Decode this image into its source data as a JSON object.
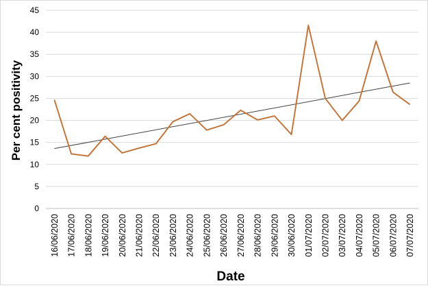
{
  "chart_data": {
    "type": "line",
    "title": "",
    "xlabel": "Date",
    "ylabel": "Per cent positivity",
    "ylim": [
      0,
      45
    ],
    "yticks": [
      0,
      5,
      10,
      15,
      20,
      25,
      30,
      35,
      40,
      45
    ],
    "grid": "horizontal",
    "legend": "none",
    "categories": [
      "16/06/2020",
      "17/06/2020",
      "18/06/2020",
      "19/06/2020",
      "20/06/2020",
      "21/06/2020",
      "22/06/2020",
      "23/06/2020",
      "24/06/2020",
      "25/06/2020",
      "26/06/2020",
      "27/06/2020",
      "28/06/2020",
      "29/06/2020",
      "30/06/2020",
      "01/07/2020",
      "02/07/2020",
      "03/07/2020",
      "04/07/2020",
      "05/07/2020",
      "06/07/2020",
      "07/07/2020"
    ],
    "series": [
      {
        "values": [
          24.7,
          12.4,
          11.9,
          16.4,
          12.6,
          13.7,
          14.7,
          19.7,
          21.5,
          17.8,
          19.0,
          22.3,
          20.1,
          21.0,
          16.8,
          41.6,
          25.0,
          20.0,
          24.4,
          38.0,
          26.4,
          23.6
        ],
        "color": "#c0763c"
      }
    ],
    "trendline": {
      "start": 13.6,
      "end": 28.5,
      "color": "#404040"
    }
  }
}
